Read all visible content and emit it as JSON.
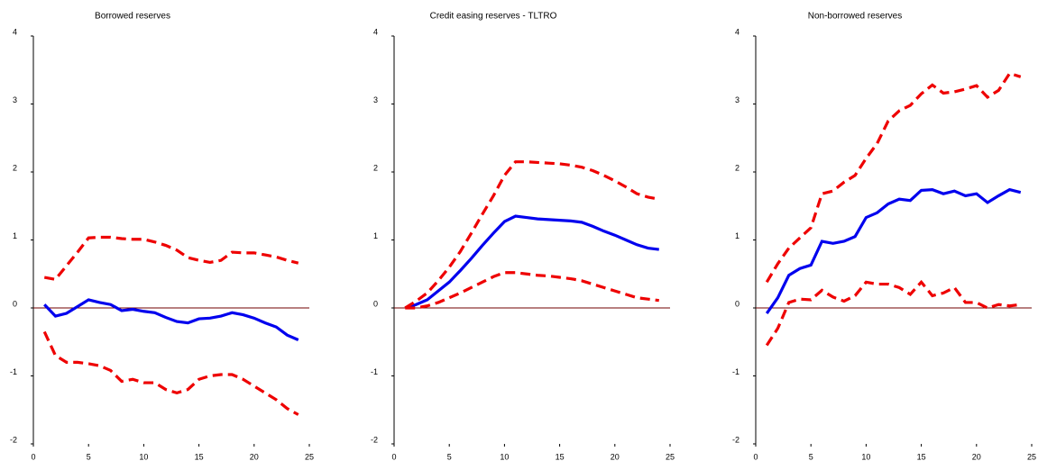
{
  "chart_data": [
    {
      "type": "line",
      "title": "Borrowed reserves",
      "x": [
        1,
        2,
        3,
        4,
        5,
        6,
        7,
        8,
        9,
        10,
        11,
        12,
        13,
        14,
        15,
        16,
        17,
        18,
        19,
        20,
        21,
        22,
        23,
        24
      ],
      "series": [
        {
          "color": "#0000ee",
          "dashed": false,
          "values": [
            0.05,
            -0.12,
            -0.08,
            0.02,
            0.12,
            0.08,
            0.05,
            -0.04,
            -0.02,
            -0.05,
            -0.07,
            -0.14,
            -0.2,
            -0.22,
            -0.16,
            -0.15,
            -0.12,
            -0.07,
            -0.1,
            -0.15,
            -0.22,
            -0.28,
            -0.4,
            -0.47
          ]
        },
        {
          "color": "#ee0000",
          "dashed": true,
          "values": [
            0.45,
            0.42,
            0.62,
            0.82,
            1.03,
            1.04,
            1.04,
            1.02,
            1.01,
            1.01,
            0.97,
            0.92,
            0.85,
            0.74,
            0.7,
            0.67,
            0.7,
            0.82,
            0.81,
            0.81,
            0.78,
            0.75,
            0.7,
            0.66
          ]
        },
        {
          "color": "#ee0000",
          "dashed": true,
          "values": [
            -0.35,
            -0.7,
            -0.8,
            -0.8,
            -0.82,
            -0.85,
            -0.92,
            -1.08,
            -1.05,
            -1.1,
            -1.1,
            -1.2,
            -1.25,
            -1.2,
            -1.05,
            -1.0,
            -0.98,
            -0.98,
            -1.05,
            -1.15,
            -1.25,
            -1.35,
            -1.48,
            -1.57
          ]
        }
      ],
      "xlim": [
        0,
        25
      ],
      "xticks": [
        0,
        5,
        10,
        15,
        20,
        25
      ],
      "ylim": [
        -2,
        4
      ],
      "yticks": [
        -2,
        -1,
        0,
        1,
        2,
        3,
        4
      ]
    },
    {
      "type": "line",
      "title": "Credit easing reserves - TLTRO",
      "x": [
        1,
        2,
        3,
        4,
        5,
        6,
        7,
        8,
        9,
        10,
        11,
        12,
        13,
        14,
        15,
        16,
        17,
        18,
        19,
        20,
        21,
        22,
        23,
        24
      ],
      "series": [
        {
          "color": "#0000ee",
          "dashed": false,
          "values": [
            0,
            0.05,
            0.12,
            0.25,
            0.38,
            0.55,
            0.73,
            0.92,
            1.1,
            1.27,
            1.35,
            1.33,
            1.31,
            1.3,
            1.29,
            1.28,
            1.26,
            1.2,
            1.13,
            1.07,
            1.0,
            0.93,
            0.88,
            0.86
          ]
        },
        {
          "color": "#ee0000",
          "dashed": true,
          "values": [
            0,
            0.1,
            0.22,
            0.4,
            0.6,
            0.83,
            1.1,
            1.38,
            1.65,
            1.95,
            2.15,
            2.15,
            2.14,
            2.13,
            2.12,
            2.1,
            2.07,
            2.02,
            1.95,
            1.87,
            1.78,
            1.68,
            1.63,
            1.6
          ]
        },
        {
          "color": "#ee0000",
          "dashed": true,
          "values": [
            0,
            0,
            0.03,
            0.08,
            0.15,
            0.22,
            0.3,
            0.38,
            0.46,
            0.52,
            0.52,
            0.5,
            0.48,
            0.47,
            0.45,
            0.43,
            0.4,
            0.35,
            0.3,
            0.25,
            0.2,
            0.15,
            0.13,
            0.11
          ]
        }
      ],
      "xlim": [
        0,
        25
      ],
      "xticks": [
        0,
        5,
        10,
        15,
        20,
        25
      ],
      "ylim": [
        -2,
        4
      ],
      "yticks": [
        -2,
        -1,
        0,
        1,
        2,
        3,
        4
      ]
    },
    {
      "type": "line",
      "title": "Non-borrowed reserves",
      "x": [
        1,
        2,
        3,
        4,
        5,
        6,
        7,
        8,
        9,
        10,
        11,
        12,
        13,
        14,
        15,
        16,
        17,
        18,
        19,
        20,
        21,
        22,
        23,
        24
      ],
      "series": [
        {
          "color": "#0000ee",
          "dashed": false,
          "values": [
            -0.08,
            0.15,
            0.48,
            0.58,
            0.63,
            0.98,
            0.95,
            0.98,
            1.05,
            1.33,
            1.4,
            1.53,
            1.6,
            1.58,
            1.73,
            1.74,
            1.68,
            1.72,
            1.65,
            1.68,
            1.55,
            1.65,
            1.74,
            1.7
          ]
        },
        {
          "color": "#ee0000",
          "dashed": true,
          "values": [
            0.38,
            0.65,
            0.88,
            1.03,
            1.18,
            1.68,
            1.72,
            1.85,
            1.95,
            2.2,
            2.42,
            2.75,
            2.9,
            2.98,
            3.15,
            3.28,
            3.16,
            3.18,
            3.22,
            3.27,
            3.1,
            3.2,
            3.45,
            3.4
          ]
        },
        {
          "color": "#ee0000",
          "dashed": true,
          "values": [
            -0.55,
            -0.3,
            0.08,
            0.13,
            0.12,
            0.26,
            0.16,
            0.1,
            0.18,
            0.38,
            0.35,
            0.35,
            0.3,
            0.2,
            0.38,
            0.18,
            0.22,
            0.3,
            0.08,
            0.08,
            0,
            0.05,
            0.03,
            0.05
          ]
        }
      ],
      "xlim": [
        0,
        25
      ],
      "xticks": [
        0,
        5,
        10,
        15,
        20,
        25
      ],
      "ylim": [
        -2,
        4
      ],
      "yticks": [
        -2,
        -1,
        0,
        1,
        2,
        3,
        4
      ]
    }
  ]
}
